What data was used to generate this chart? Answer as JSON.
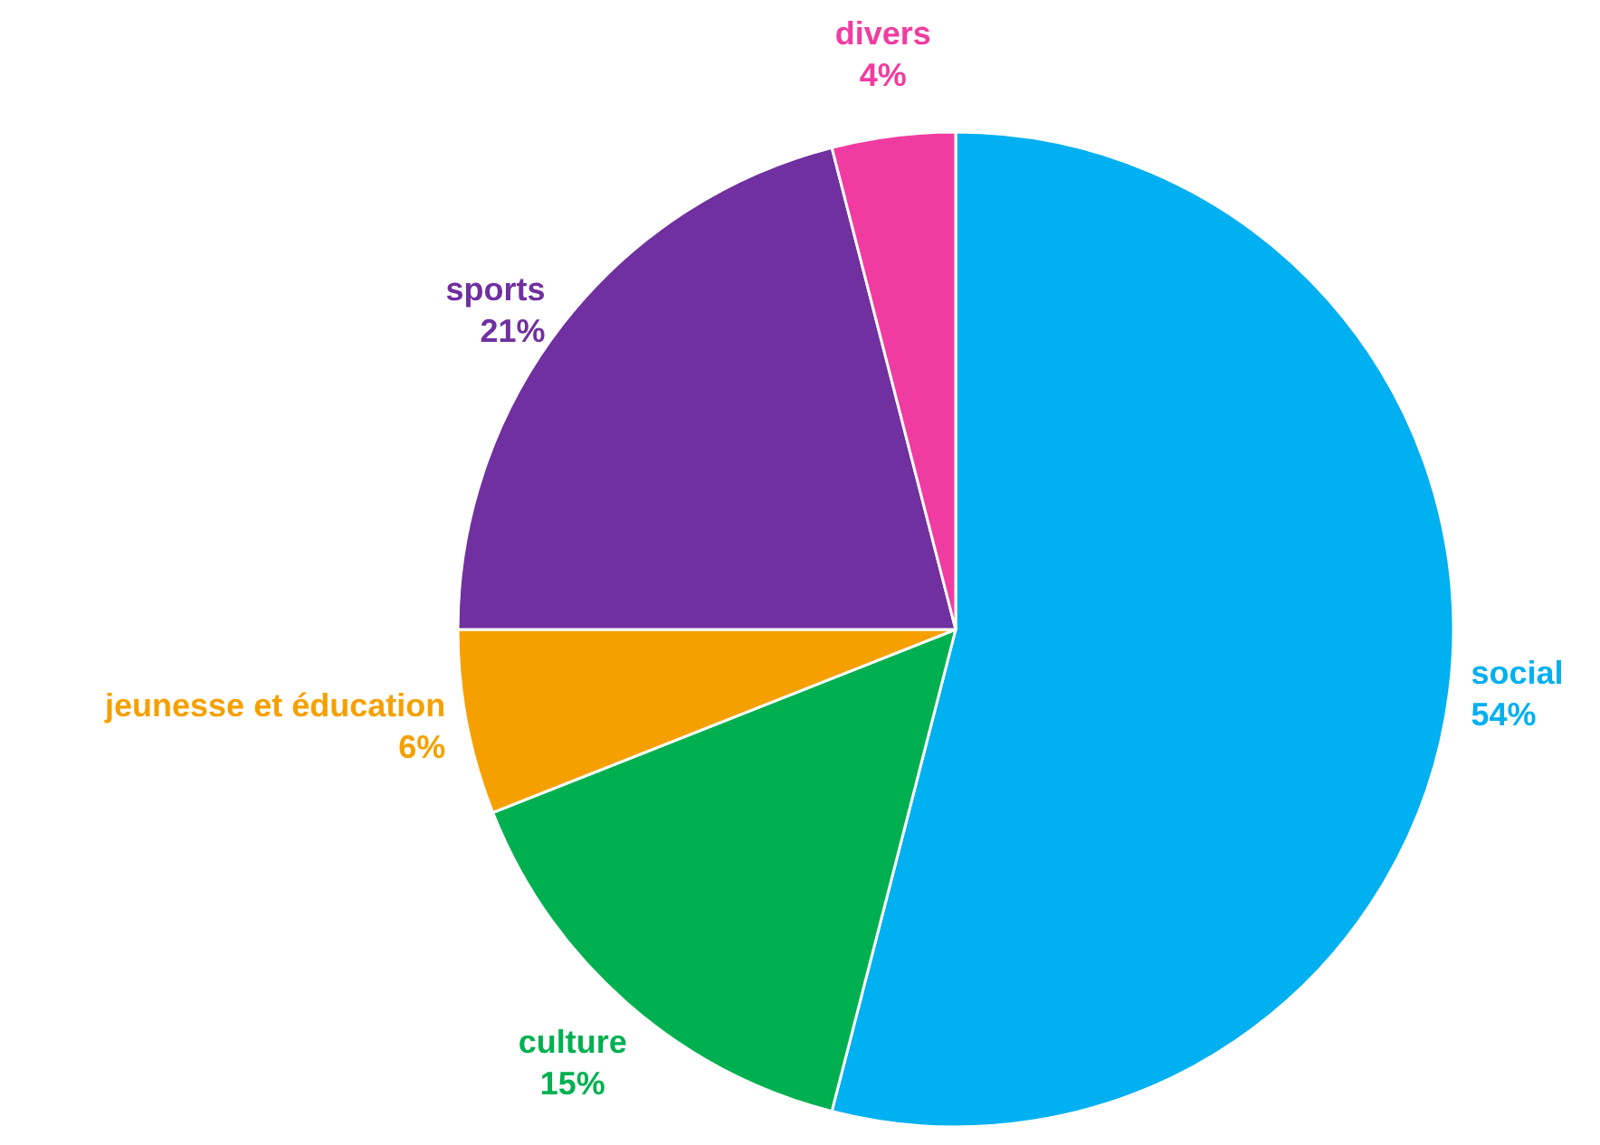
{
  "chart_data": {
    "type": "pie",
    "categories": [
      "social",
      "culture",
      "jeunesse et éducation",
      "sports",
      "divers"
    ],
    "values": [
      54,
      15,
      6,
      21,
      4
    ],
    "value_labels": [
      "54%",
      "15%",
      "6%",
      "21%",
      "4%"
    ],
    "colors": [
      "#00b0f0",
      "#00b050",
      "#f5a000",
      "#7030a0",
      "#f03ca0"
    ]
  }
}
